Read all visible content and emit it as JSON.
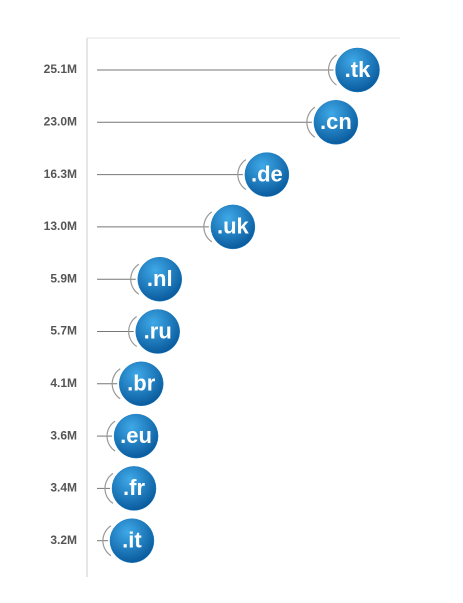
{
  "chart_data": {
    "type": "lollipop",
    "categories": [
      ".tk",
      ".cn",
      ".de",
      ".uk",
      ".nl",
      ".ru",
      ".br",
      ".eu",
      ".fr",
      ".it"
    ],
    "values": [
      25.1,
      23.0,
      16.3,
      13.0,
      5.9,
      5.7,
      4.1,
      3.6,
      3.4,
      3.2
    ],
    "value_labels": [
      "25.1M",
      "23.0M",
      "16.3M",
      "13.0M",
      "5.9M",
      "5.7M",
      "4.1M",
      "3.6M",
      "3.4M",
      "3.2M"
    ],
    "color": "#1a7cc4"
  }
}
